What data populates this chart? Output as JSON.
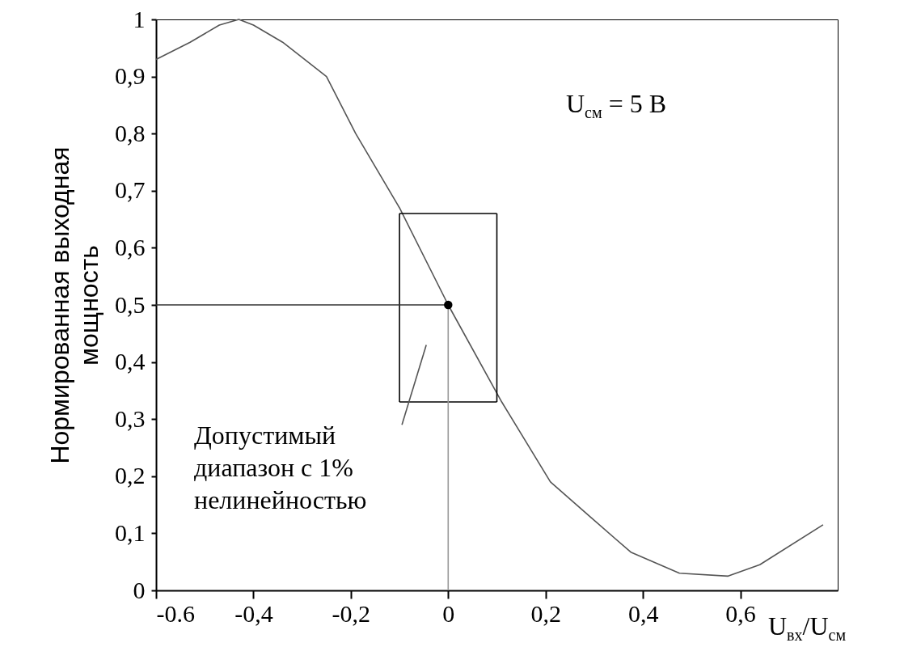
{
  "chart_data": {
    "type": "line",
    "xlabel": "U$_{вх}$/U$_{см}$",
    "ylabel": "Нормированная выходная мощность",
    "xlim": [
      -0.6,
      0.8
    ],
    "ylim": [
      0,
      1
    ],
    "xticks": [
      {
        "value": -0.6,
        "label": "-0.6"
      },
      {
        "value": -0.4,
        "label": "-0,4"
      },
      {
        "value": -0.2,
        "label": "-0,2"
      },
      0,
      {
        "value": 0.2,
        "label": "0,2"
      },
      {
        "value": 0.4,
        "label": "0,4"
      },
      {
        "value": 0.6,
        "label": "0,6"
      }
    ],
    "yticks": [
      0,
      {
        "value": 0.1,
        "label": "0,1"
      },
      {
        "value": 0.2,
        "label": "0,2"
      },
      {
        "value": 0.3,
        "label": "0,3"
      },
      {
        "value": 0.4,
        "label": "0,4"
      },
      {
        "value": 0.5,
        "label": "0,5"
      },
      {
        "value": 0.6,
        "label": "0,6"
      },
      {
        "value": 0.7,
        "label": "0,7"
      },
      {
        "value": 0.8,
        "label": "0,8"
      },
      {
        "value": 0.9,
        "label": "0,9"
      },
      1
    ],
    "grid": false,
    "series": [
      {
        "color": "#555555",
        "x": [
          -0.6,
          -0.53,
          -0.47,
          -0.43,
          -0.4,
          -0.34,
          -0.25,
          -0.19,
          -0.1,
          0,
          0.11,
          0.21,
          0.29,
          0.375,
          0.475,
          0.575,
          0.64,
          0.77
        ],
        "values": [
          0.93,
          0.96,
          0.99,
          1.0,
          0.99,
          0.96,
          0.9,
          0.8,
          0.67,
          0.5,
          0.33,
          0.19,
          0.13,
          0.067,
          0.03,
          0.025,
          0.045,
          0.115
        ]
      },
      {
        "color": "#000000",
        "x": [
          -0.1,
          -0.1
        ],
        "values": [
          0.33,
          0.66
        ]
      },
      {
        "color": "#000000",
        "x": [
          -0.1,
          0.1
        ],
        "values": [
          0.66,
          0.66
        ]
      },
      {
        "color": "#000000",
        "x": [
          0.1,
          0.1
        ],
        "values": [
          0.66,
          0.33
        ]
      },
      {
        "color": "#000000",
        "x": [
          0.1,
          -0.1
        ],
        "values": [
          0.33,
          0.33
        ]
      },
      {
        "color": "#333333",
        "x": [
          -0.6,
          0
        ],
        "values": [
          0.5,
          0.5
        ]
      },
      {
        "color": "#999999",
        "x": [
          0,
          0
        ],
        "values": [
          0,
          0.5
        ]
      },
      {
        "color": "#555555",
        "x": [
          -0.095,
          -0.045
        ],
        "values": [
          0.29,
          0.43
        ]
      },
      {
        "type": "scatter",
        "color": "#000000",
        "x": [
          0
        ],
        "values": [
          0.5
        ]
      }
    ],
    "annotations": [
      "Допустимый\nдиапазон с 1%\nнелинейностью",
      "U$_{см}$ = 5 В"
    ]
  }
}
